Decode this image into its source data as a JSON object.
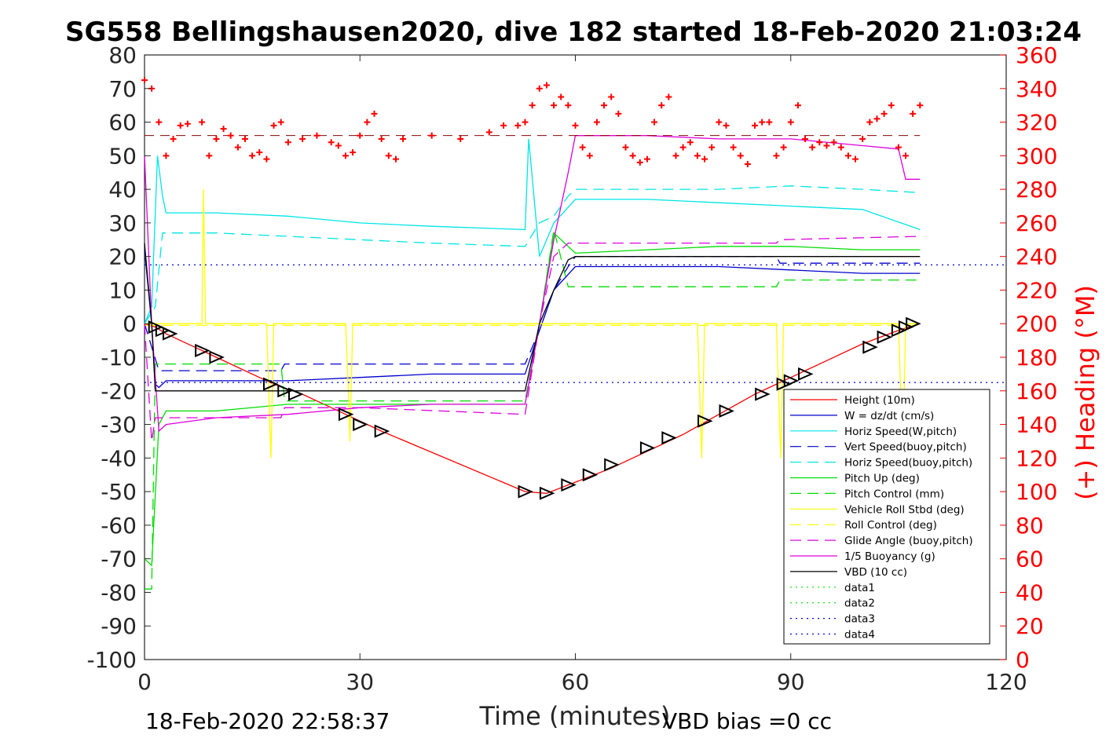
{
  "colors": {
    "height": "#ff0000",
    "w": "#0000cc",
    "horiz_w": "#00e5e5",
    "vert_buoy": "#0000cc",
    "horiz_buoy": "#00e5e5",
    "pitch_up": "#00dd00",
    "pitch_ctrl": "#00dd00",
    "roll": "#ffff00",
    "roll_ctrl": "#ffff00",
    "glide": "#dd00dd",
    "buoyancy": "#dd00dd",
    "vbd": "#000000",
    "heading": "#ff0000",
    "right_axis": "#ff0000"
  },
  "chart_data": {
    "type": "line",
    "title": "SG558 Bellingshausen2020, dive 182 started 18-Feb-2020 21:03:24",
    "xlabel": "Time (minutes)",
    "ylabel": "",
    "ylabel_right": "(+) Heading (°M)",
    "xlim": [
      0,
      120
    ],
    "ylim": [
      -100,
      80
    ],
    "ylim_right": [
      0,
      360
    ],
    "x_ticks": [
      "0",
      "30",
      "60",
      "90",
      "120"
    ],
    "y_ticks": [
      "80",
      "70",
      "60",
      "50",
      "40",
      "30",
      "20",
      "10",
      "0",
      "-10",
      "-20",
      "-30",
      "-40",
      "-50",
      "-60",
      "-70",
      "-80",
      "-90",
      "-100"
    ],
    "y_ticks_right": [
      "360",
      "340",
      "320",
      "300",
      "280",
      "260",
      "240",
      "220",
      "200",
      "180",
      "160",
      "140",
      "120",
      "100",
      "80",
      "60",
      "40",
      "20",
      "0"
    ],
    "legend_position": "lower-right",
    "footer_left": "18-Feb-2020 22:58:37",
    "footer_right": "VBD bias =0 cc",
    "series": [
      {
        "name": "Height (10m)",
        "style": "solid",
        "color_key": "height",
        "x": [
          0,
          1.5,
          3,
          8,
          12,
          18,
          22,
          28,
          33,
          53,
          56,
          59,
          65,
          75,
          80,
          85,
          90,
          95,
          100,
          105,
          108
        ],
        "y": [
          0,
          -1,
          -3,
          -8,
          -12,
          -18,
          -21,
          -27,
          -32,
          -50,
          -50.5,
          -48,
          -43,
          -33,
          -27,
          -21,
          -16,
          -11,
          -6,
          -2,
          0
        ]
      },
      {
        "name": "W = dz/dt (cm/s)",
        "style": "solid",
        "color_key": "w",
        "x": [
          0,
          1,
          1.5,
          2,
          3,
          10,
          20,
          30,
          40,
          53,
          55,
          57,
          60,
          70,
          80,
          90,
          100,
          108
        ],
        "y": [
          22,
          0,
          -18,
          -19,
          -17,
          -17,
          -17,
          -16,
          -15,
          -15,
          -2,
          10,
          17,
          17,
          17,
          16,
          15,
          15
        ]
      },
      {
        "name": "Horiz Speed(W,pitch)",
        "style": "solid",
        "color_key": "horiz_w",
        "x": [
          0,
          1,
          1.8,
          2.5,
          3,
          10,
          20,
          30,
          40,
          53,
          53.5,
          55,
          57,
          60,
          70,
          80,
          90,
          100,
          108
        ],
        "y": [
          0,
          5,
          50,
          38,
          33,
          33,
          32,
          30,
          29,
          28,
          55,
          20,
          30,
          37,
          37,
          36,
          35,
          34,
          28
        ]
      },
      {
        "name": "Vert Speed(buoy,pitch)",
        "style": "dashed",
        "color_key": "vert_buoy",
        "x": [
          0,
          2,
          10,
          19,
          19.5,
          30,
          53,
          55,
          57,
          59,
          60,
          88,
          88.5,
          100,
          108
        ],
        "y": [
          0,
          -14,
          -14,
          -14,
          -12,
          -12,
          -12,
          -2,
          10,
          17,
          20,
          20,
          18,
          18,
          18
        ]
      },
      {
        "name": "Horiz Speed(buoy,pitch)",
        "style": "dashed",
        "color_key": "horiz_buoy",
        "x": [
          0,
          1.5,
          2.5,
          10,
          20,
          30,
          40,
          53,
          55,
          57,
          59,
          60,
          70,
          80,
          90,
          100,
          108
        ],
        "y": [
          0,
          5,
          27,
          27,
          26,
          25,
          24,
          23,
          30,
          32,
          38,
          40,
          40,
          40,
          41,
          40,
          39
        ]
      },
      {
        "name": "Pitch Up (deg)",
        "style": "solid",
        "color_key": "pitch_up",
        "x": [
          0,
          1,
          2,
          3,
          10,
          20,
          30,
          40,
          53,
          55,
          57,
          60,
          70,
          80,
          90,
          100,
          108
        ],
        "y": [
          -70,
          -72,
          -30,
          -26,
          -26,
          -24,
          -24,
          -24,
          -24,
          0,
          27,
          21,
          22,
          23,
          23,
          22,
          22
        ]
      },
      {
        "name": "Pitch Control (mm)",
        "style": "dashed",
        "color_key": "pitch_ctrl",
        "x": [
          0,
          1,
          1.5,
          2,
          19,
          19.5,
          53,
          55,
          57,
          59,
          60,
          88,
          88.5,
          108
        ],
        "y": [
          -79,
          -79,
          -12,
          -12,
          -12,
          -23,
          -23,
          0,
          28,
          11,
          11,
          11,
          13,
          13
        ]
      },
      {
        "name": "Vehicle Roll Stbd (deg)",
        "style": "solid",
        "color_key": "roll",
        "x": [
          0,
          5,
          8,
          8.2,
          8.5,
          9,
          17,
          17.3,
          17.6,
          18,
          28,
          28.3,
          28.6,
          29,
          40,
          45,
          53,
          60,
          70,
          77,
          77.3,
          77.6,
          78,
          88,
          88.3,
          88.6,
          89,
          100,
          105,
          105.3,
          105.6,
          106,
          108
        ],
        "y": [
          0,
          0,
          0,
          40,
          0,
          0,
          0,
          -20,
          -40,
          0,
          0,
          -15,
          -35,
          0,
          0,
          0,
          0,
          0,
          0,
          0,
          -20,
          -40,
          0,
          0,
          -20,
          -40,
          0,
          0,
          0,
          -20,
          -40,
          0,
          0
        ]
      },
      {
        "name": "Roll Control (deg)",
        "style": "dashed",
        "color_key": "roll_ctrl",
        "x": [
          0,
          10,
          30,
          53,
          60,
          90,
          108
        ],
        "y": [
          -0.5,
          -0.5,
          -0.5,
          -0.5,
          -0.5,
          -0.5,
          -0.5
        ]
      },
      {
        "name": "Glide Angle (buoy,pitch)",
        "style": "dashed",
        "color_key": "glide",
        "x": [
          0,
          1,
          1.5,
          2.5,
          10,
          19,
          19.5,
          30,
          53,
          55,
          57,
          59,
          60,
          88,
          88.5,
          108
        ],
        "y": [
          0,
          -35,
          -28,
          -28,
          -28,
          -28,
          -25,
          -25,
          -27,
          0,
          20,
          24,
          24,
          24,
          25,
          26
        ]
      },
      {
        "name": "1/5 Buoyancy (g)",
        "style": "solid",
        "color_key": "buoyancy",
        "x": [
          0,
          1,
          2,
          3,
          10,
          20,
          30,
          40,
          53,
          55,
          57,
          59,
          60,
          70,
          80,
          90,
          100,
          105,
          106,
          108
        ],
        "y": [
          50,
          0,
          -32,
          -30,
          -28,
          -27,
          -25,
          -24,
          -24,
          0,
          25,
          45,
          56,
          56,
          55,
          55,
          53,
          52,
          43,
          43
        ]
      },
      {
        "name": "VBD (10 cc)",
        "style": "solid",
        "color_key": "vbd",
        "x": [
          0,
          1,
          1.5,
          2,
          53,
          55,
          57,
          59,
          60,
          108
        ],
        "y": [
          24,
          0,
          -20,
          -20,
          -20,
          0,
          10,
          19,
          20,
          20
        ]
      },
      {
        "name": "data1",
        "style": "dotted",
        "color_key": "pitch_up",
        "x": [],
        "y": []
      },
      {
        "name": "data2",
        "style": "dotted",
        "color_key": "pitch_up",
        "x": [],
        "y": []
      },
      {
        "name": "data3",
        "style": "dotted",
        "color_key": "vert_buoy",
        "x": [
          0,
          120
        ],
        "y": [
          17.5,
          17.5
        ]
      },
      {
        "name": "data4",
        "style": "dotted",
        "color_key": "vert_buoy",
        "x": [
          0,
          120
        ],
        "y": [
          -17.5,
          -17.5
        ]
      }
    ],
    "heading_points": {
      "axis": "right",
      "marker": "+",
      "x": [
        0,
        1,
        2,
        3,
        4,
        5,
        6,
        8,
        9,
        10,
        11,
        12,
        13,
        14,
        15,
        16,
        17,
        18,
        19,
        20,
        22,
        24,
        26,
        27,
        28,
        29,
        30,
        31,
        32,
        33,
        34,
        35,
        36,
        40,
        44,
        48,
        50,
        52,
        53,
        54,
        55,
        56,
        57,
        58,
        59,
        60,
        61,
        62,
        63,
        64,
        65,
        66,
        67,
        68,
        69,
        70,
        71,
        72,
        73,
        74,
        75,
        76,
        77,
        78,
        79,
        80,
        81,
        82,
        83,
        84,
        85,
        86,
        87,
        88,
        89,
        90,
        91,
        92,
        93,
        94,
        95,
        96,
        97,
        98,
        99,
        100,
        101,
        102,
        103,
        104,
        105,
        106,
        107,
        108
      ],
      "y": [
        345,
        340,
        320,
        300,
        310,
        318,
        319,
        320,
        300,
        310,
        316,
        312,
        305,
        310,
        300,
        302,
        298,
        318,
        320,
        308,
        310,
        312,
        308,
        306,
        300,
        302,
        312,
        320,
        325,
        310,
        300,
        298,
        310,
        312,
        310,
        314,
        318,
        318,
        320,
        330,
        340,
        342,
        330,
        335,
        330,
        318,
        305,
        300,
        320,
        330,
        335,
        325,
        305,
        300,
        296,
        298,
        320,
        330,
        335,
        300,
        305,
        308,
        300,
        298,
        305,
        320,
        318,
        305,
        300,
        295,
        318,
        320,
        320,
        300,
        305,
        320,
        330,
        310,
        305,
        308,
        306,
        308,
        305,
        300,
        298,
        310,
        320,
        322,
        325,
        330,
        305,
        300,
        325,
        330
      ]
    },
    "heading_reference_y": 56,
    "dive_markers": {
      "x": [
        1.5,
        2.5,
        3.5,
        8,
        10,
        17.5,
        19.5,
        21,
        28,
        30,
        33,
        53,
        56,
        59,
        62,
        65,
        70,
        73,
        78,
        81,
        86,
        89,
        90,
        92,
        101,
        103,
        105,
        106,
        107
      ],
      "y": [
        -1,
        -2,
        -3,
        -8,
        -10,
        -18,
        -20,
        -21,
        -27,
        -30,
        -32,
        -50,
        -50.5,
        -48,
        -45,
        -42,
        -37,
        -34,
        -29,
        -26,
        -21,
        -18,
        -17,
        -15,
        -7,
        -4,
        -2,
        -1,
        0
      ]
    }
  }
}
